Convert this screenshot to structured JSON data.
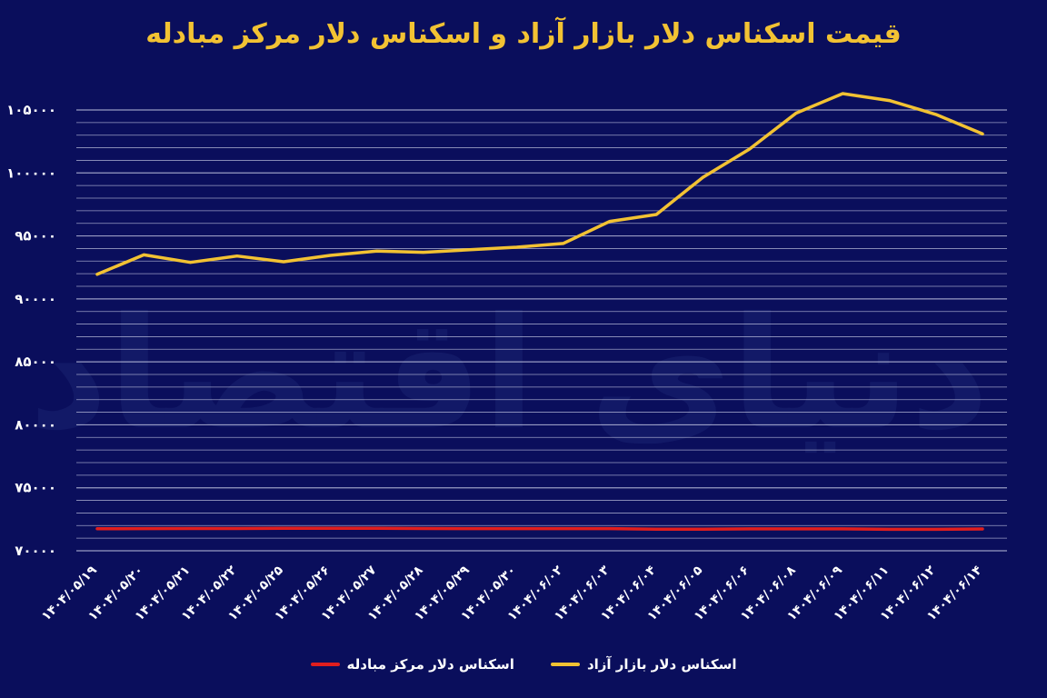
{
  "chart_data": {
    "type": "line",
    "title": "قیمت اسکناس دلار بازار آزاد و اسکناس دلار مرکز مبادله",
    "watermark": "دنیای اقتصاد",
    "x": [
      "۱۴۰۴/۰۵/۱۹",
      "۱۴۰۴/۰۵/۲۰",
      "۱۴۰۴/۰۵/۲۱",
      "۱۴۰۴/۰۵/۲۲",
      "۱۴۰۴/۰۵/۲۵",
      "۱۴۰۴/۰۵/۲۶",
      "۱۴۰۴/۰۵/۲۷",
      "۱۴۰۴/۰۵/۲۸",
      "۱۴۰۴/۰۵/۲۹",
      "۱۴۰۴/۰۵/۳۰",
      "۱۴۰۴/۰۶/۰۲",
      "۱۴۰۴/۰۶/۰۳",
      "۱۴۰۴/۰۶/۰۴",
      "۱۴۰۴/۰۶/۰۵",
      "۱۴۰۴/۰۶/۰۶",
      "۱۴۰۴/۰۶/۰۸",
      "۱۴۰۴/۰۶/۰۹",
      "۱۴۰۴/۰۶/۱۱",
      "۱۴۰۴/۰۶/۱۲",
      "۱۴۰۴/۰۶/۱۴"
    ],
    "yticks": [
      "۱۰۵۰۰۰",
      "۱۰۰۰۰۰",
      "۹۵۰۰۰",
      "۹۰۰۰۰",
      "۸۵۰۰۰",
      "۸۰۰۰۰",
      "۷۵۰۰۰",
      "۷۰۰۰۰"
    ],
    "ylim": [
      70000,
      105000
    ],
    "ytick_values": [
      105000,
      100000,
      95000,
      90000,
      85000,
      80000,
      75000,
      70000
    ],
    "grid": true,
    "legend_position": "bottom",
    "series": [
      {
        "name": "اسکناس دلار بازار آزاد",
        "color": "#f2c233",
        "values": [
          91950,
          93500,
          92900,
          93400,
          92950,
          93450,
          93800,
          93700,
          93900,
          94100,
          94400,
          96150,
          96700,
          99650,
          101900,
          104750,
          106300,
          105750,
          104650,
          103100
        ]
      },
      {
        "name": "اسکناس دلار مرکز مبادله",
        "color": "#e01e1e",
        "values": [
          71750,
          71760,
          71770,
          71770,
          71780,
          71790,
          71790,
          71770,
          71760,
          71760,
          71760,
          71760,
          71710,
          71710,
          71740,
          71740,
          71740,
          71700,
          71700,
          71730
        ]
      }
    ]
  }
}
